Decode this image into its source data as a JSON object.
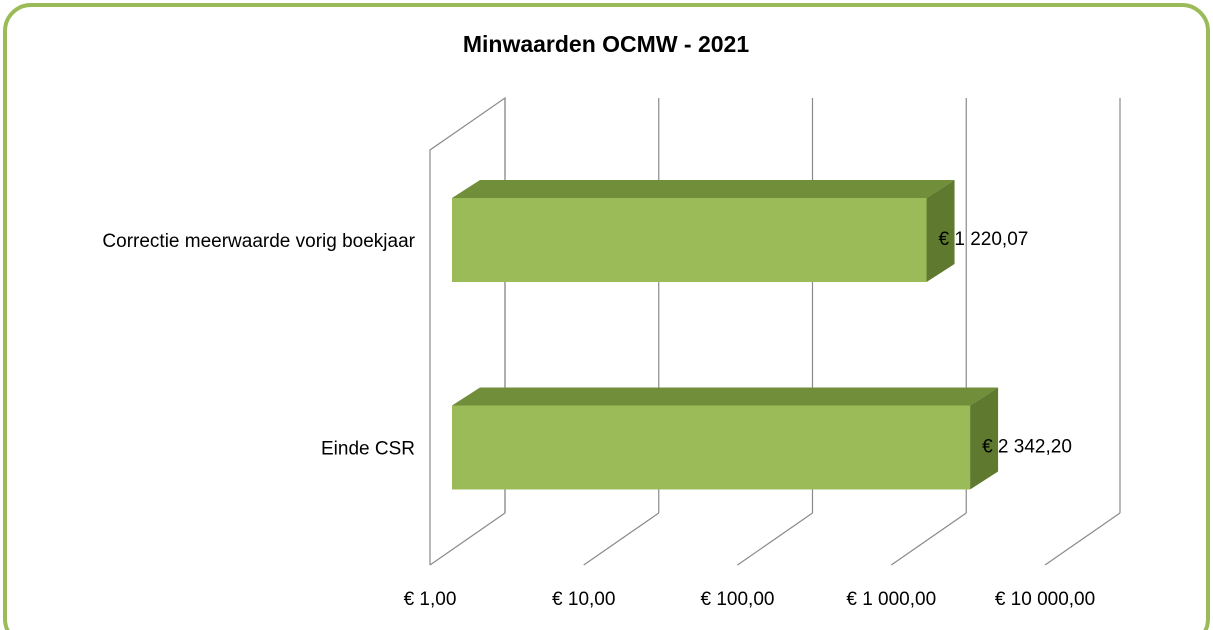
{
  "chart_data": {
    "type": "bar3d_horizontal",
    "title": "Minwaarden OCMW - 2021",
    "categories": [
      "Correctie meerwaarde vorig boekjaar",
      "Einde CSR"
    ],
    "values": [
      1220.07,
      2342.2
    ],
    "value_labels": [
      "€ 1 220,07",
      "€ 2 342,20"
    ],
    "color": "#9bbb59",
    "xlim": [
      1,
      10000
    ],
    "xticks": [
      {
        "value": 1,
        "label": "€  1,00"
      },
      {
        "value": 10,
        "label": "€  10,00"
      },
      {
        "value": 100,
        "label": "€  100,00"
      },
      {
        "value": 1000,
        "label": "€ 1 000,00"
      },
      {
        "value": 10000,
        "label": "€ 10 000,00"
      }
    ],
    "x_log_scale": true,
    "grid": true
  }
}
